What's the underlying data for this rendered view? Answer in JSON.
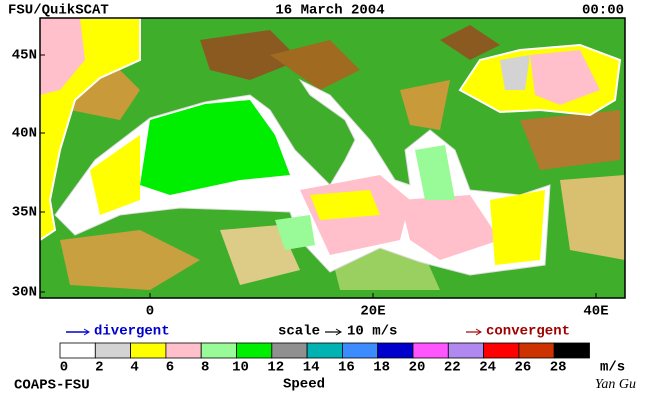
{
  "header": {
    "left": "FSU/QuikSCAT",
    "center": "16 March 2004",
    "right": "00:00"
  },
  "map": {
    "lat_labels": [
      "45N",
      "40N",
      "35N",
      "30N"
    ],
    "lon_labels": [
      "0",
      "20E",
      "40E"
    ]
  },
  "legend": {
    "divergent": "divergent",
    "scale": "scale",
    "scale_value": "10 m/s",
    "convergent": "convergent"
  },
  "colorbar": {
    "title": "Speed",
    "unit": "m/s",
    "ticks": [
      "0",
      "2",
      "4",
      "6",
      "8",
      "10",
      "12",
      "14",
      "16",
      "18",
      "20",
      "22",
      "24",
      "26",
      "28"
    ],
    "colors": [
      "#ffffff",
      "#d3d3d3",
      "#ffff00",
      "#ffc0cb",
      "#98fb98",
      "#00ee00",
      "#909090",
      "#00b2b2",
      "#3c8cff",
      "#0000cd",
      "#ff55ff",
      "#b088f0",
      "#ff0000",
      "#cc3300",
      "#000000"
    ]
  },
  "footer": {
    "left": "COAPS-FSU",
    "right": "Yan Gu"
  }
}
